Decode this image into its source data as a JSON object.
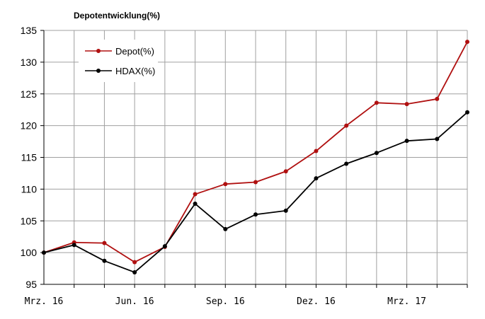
{
  "chart_data": {
    "type": "line",
    "title": "Depotentwicklung(%)",
    "xlabel": "",
    "ylabel": "",
    "ylim": [
      95,
      135
    ],
    "yticks": [
      95,
      100,
      105,
      110,
      115,
      120,
      125,
      130,
      135
    ],
    "x_tick_labels": [
      "Mrz. 16",
      "Jun. 16",
      "Sep. 16",
      "Dez. 16",
      "Mrz. 17"
    ],
    "x_tick_index": [
      0,
      3,
      6,
      9,
      12
    ],
    "grid": true,
    "legend_position": "top-left",
    "series": [
      {
        "name": "Depot(%)",
        "color": "#b01010",
        "values": [
          100,
          101.6,
          101.5,
          98.5,
          100.9,
          109.2,
          110.8,
          111.1,
          112.8,
          116.0,
          120.0,
          123.6,
          123.4,
          124.2,
          133.2
        ]
      },
      {
        "name": "HDAX(%)",
        "color": "#000000",
        "values": [
          100,
          101.2,
          98.7,
          96.9,
          101.0,
          107.7,
          103.7,
          106.0,
          106.6,
          111.7,
          114.0,
          115.7,
          117.6,
          117.9,
          122.1
        ]
      }
    ]
  }
}
